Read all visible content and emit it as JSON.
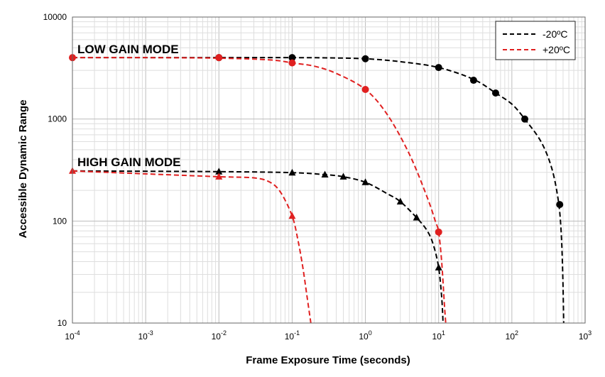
{
  "chart_data": {
    "type": "line",
    "title": "",
    "xlabel": "Frame Exposure Time (seconds)",
    "ylabel": "Accessible Dynamic Range",
    "x_scale": "log",
    "y_scale": "log",
    "xlim": [
      0.0001,
      1000
    ],
    "ylim": [
      10,
      10000
    ],
    "grid": true,
    "legend_position": "top-right",
    "x_ticks": [
      {
        "base": "10",
        "exp": "-4"
      },
      {
        "base": "10",
        "exp": "-3"
      },
      {
        "base": "10",
        "exp": "-2"
      },
      {
        "base": "10",
        "exp": "-1"
      },
      {
        "base": "10",
        "exp": "0"
      },
      {
        "base": "10",
        "exp": "1"
      },
      {
        "base": "10",
        "exp": "2"
      },
      {
        "base": "10",
        "exp": "3"
      }
    ],
    "y_ticks": [
      "10",
      "100",
      "1000",
      "10000"
    ],
    "annotations": {
      "low_gain": "LOW GAIN MODE",
      "high_gain": "HIGH GAIN MODE"
    },
    "legend": [
      {
        "label": "-20ºC",
        "color": "#000000"
      },
      {
        "label": "+20ºC",
        "color": "#e02020"
      }
    ],
    "series": [
      {
        "name": "-20ºC",
        "mode": "LOW GAIN MODE",
        "color": "#000000",
        "marker": "circle",
        "curve": [
          [
            0.0001,
            4000
          ],
          [
            0.01,
            4000
          ],
          [
            0.1,
            4000
          ],
          [
            0.3,
            3980
          ],
          [
            1,
            3900
          ],
          [
            3,
            3650
          ],
          [
            10,
            3200
          ],
          [
            30,
            2450
          ],
          [
            60,
            1800
          ],
          [
            100,
            1400
          ],
          [
            150,
            1000
          ],
          [
            250,
            600
          ],
          [
            350,
            330
          ],
          [
            430,
            160
          ],
          [
            470,
            80
          ],
          [
            495,
            30
          ],
          [
            510,
            10
          ]
        ],
        "markers": [
          [
            0.01,
            4000
          ],
          [
            0.1,
            4000
          ],
          [
            1,
            3900
          ],
          [
            10,
            3200
          ],
          [
            30,
            2400
          ],
          [
            60,
            1800
          ],
          [
            150,
            1000
          ],
          [
            450,
            145
          ]
        ]
      },
      {
        "name": "+20ºC",
        "mode": "LOW GAIN MODE",
        "color": "#e02020",
        "marker": "circle",
        "curve": [
          [
            0.0001,
            4000
          ],
          [
            0.001,
            4000
          ],
          [
            0.01,
            3950
          ],
          [
            0.05,
            3800
          ],
          [
            0.1,
            3550
          ],
          [
            0.2,
            3300
          ],
          [
            0.4,
            2800
          ],
          [
            1,
            1950
          ],
          [
            2,
            1100
          ],
          [
            4,
            450
          ],
          [
            7,
            170
          ],
          [
            9,
            100
          ],
          [
            10,
            78
          ],
          [
            11,
            40
          ],
          [
            12,
            15
          ],
          [
            12.5,
            10
          ]
        ],
        "markers": [
          [
            0.0001,
            4000
          ],
          [
            0.01,
            4000
          ],
          [
            0.1,
            3550
          ],
          [
            1,
            1950
          ],
          [
            10,
            78
          ]
        ]
      },
      {
        "name": "-20ºC",
        "mode": "HIGH GAIN MODE",
        "color": "#000000",
        "marker": "triangle",
        "curve": [
          [
            0.0001,
            310
          ],
          [
            0.01,
            305
          ],
          [
            0.1,
            298
          ],
          [
            0.28,
            285
          ],
          [
            0.5,
            272
          ],
          [
            1,
            240
          ],
          [
            2,
            185
          ],
          [
            3,
            155
          ],
          [
            5,
            108
          ],
          [
            7,
            80
          ],
          [
            8.5,
            58
          ],
          [
            10,
            35
          ],
          [
            11,
            18
          ],
          [
            11.5,
            10
          ]
        ],
        "markers": [
          [
            0.01,
            305
          ],
          [
            0.1,
            298
          ],
          [
            0.28,
            285
          ],
          [
            0.5,
            272
          ],
          [
            1,
            240
          ],
          [
            3,
            155
          ],
          [
            5,
            108
          ],
          [
            10,
            35
          ]
        ]
      },
      {
        "name": "+20ºC",
        "mode": "HIGH GAIN MODE",
        "color": "#e02020",
        "marker": "triangle",
        "curve": [
          [
            0.0001,
            310
          ],
          [
            0.001,
            290
          ],
          [
            0.01,
            272
          ],
          [
            0.03,
            265
          ],
          [
            0.05,
            240
          ],
          [
            0.07,
            190
          ],
          [
            0.1,
            112
          ],
          [
            0.12,
            65
          ],
          [
            0.14,
            35
          ],
          [
            0.16,
            18
          ],
          [
            0.18,
            10
          ]
        ],
        "markers": [
          [
            0.0001,
            310
          ],
          [
            0.01,
            272
          ],
          [
            0.1,
            112
          ]
        ]
      }
    ]
  }
}
